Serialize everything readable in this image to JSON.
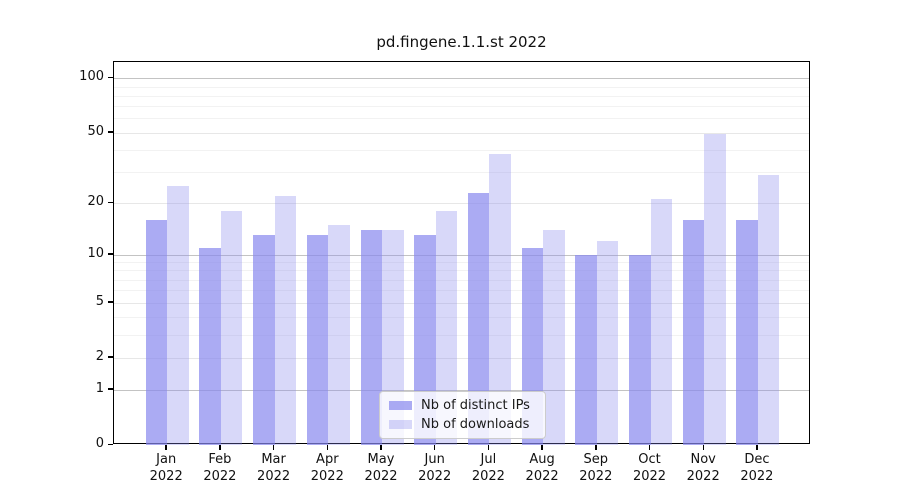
{
  "chart_data": {
    "type": "bar",
    "title": "pd.fingene.1.1.st 2022",
    "categories": [
      "Jan 2022",
      "Feb 2022",
      "Mar 2022",
      "Apr 2022",
      "May 2022",
      "Jun 2022",
      "Jul 2022",
      "Aug 2022",
      "Sep 2022",
      "Oct 2022",
      "Nov 2022",
      "Dec 2022"
    ],
    "x_tick_months": [
      "Jan",
      "Feb",
      "Mar",
      "Apr",
      "May",
      "Jun",
      "Jul",
      "Aug",
      "Sep",
      "Oct",
      "Nov",
      "Dec"
    ],
    "x_tick_year": "2022",
    "series": [
      {
        "name": "Nb of distinct IPs",
        "color": "rgba(136,136,238,0.70)",
        "values": [
          16,
          11,
          13,
          13,
          14,
          13,
          23,
          11,
          10,
          10,
          16,
          16
        ]
      },
      {
        "name": "Nb of downloads",
        "color": "rgba(136,136,238,0.33)",
        "values": [
          25,
          18,
          22,
          15,
          14,
          18,
          38,
          14,
          12,
          21,
          49,
          29
        ]
      }
    ],
    "xlabel": "",
    "ylabel": "",
    "yscale": "log1p",
    "ylim": [
      0,
      123
    ],
    "ytick_values": [
      0,
      1,
      2,
      5,
      10,
      20,
      50,
      100
    ],
    "ytick_labels": [
      "0",
      "1",
      "2",
      "5",
      "10",
      "20",
      "50",
      "100"
    ],
    "minor_gridline_values": [
      3,
      4,
      6,
      7,
      8,
      9,
      30,
      40,
      60,
      70,
      80,
      90
    ],
    "grid": true,
    "legend_position": "lower center",
    "colors": {
      "bar_base": "#8888ee",
      "grid_decade": "#c3c3c3",
      "grid_mid": "#e7e7e7",
      "grid_minor": "#f2f2f2",
      "spine": "#000000",
      "text": "#111111"
    }
  }
}
